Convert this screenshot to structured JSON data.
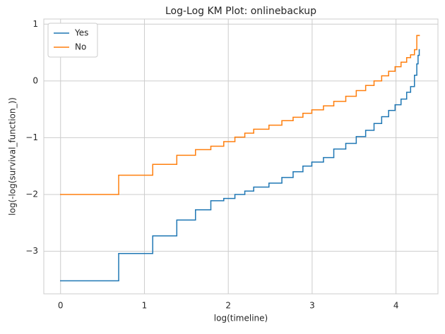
{
  "chart_data": {
    "type": "step",
    "title": "Log-Log KM Plot: onlinebackup",
    "x_label": "log(timeline)",
    "y_label": "log(-log(survival_function_))",
    "x": [
      0,
      0.693,
      1.099,
      1.386,
      1.609,
      1.792,
      1.946,
      2.079,
      2.197,
      2.303,
      2.485,
      2.639,
      2.773,
      2.89,
      2.996,
      3.135,
      3.258,
      3.401,
      3.526,
      3.638,
      3.738,
      3.829,
      3.912,
      3.989,
      4.06,
      4.127,
      4.174,
      4.22,
      4.248,
      4.263,
      4.277
    ],
    "series": [
      {
        "name": "Yes",
        "color": "#1f77b4",
        "values": [
          -3.52,
          -3.04,
          -2.73,
          -2.45,
          -2.27,
          -2.11,
          -2.07,
          -2.0,
          -1.94,
          -1.87,
          -1.8,
          -1.7,
          -1.6,
          -1.5,
          -1.43,
          -1.35,
          -1.2,
          -1.1,
          -0.98,
          -0.87,
          -0.75,
          -0.63,
          -0.52,
          -0.42,
          -0.32,
          -0.2,
          -0.1,
          0.1,
          0.3,
          0.45,
          0.55
        ]
      },
      {
        "name": "No",
        "color": "#ff7f0e",
        "values": [
          -2.0,
          -1.66,
          -1.47,
          -1.31,
          -1.21,
          -1.15,
          -1.07,
          -0.99,
          -0.92,
          -0.85,
          -0.78,
          -0.7,
          -0.64,
          -0.57,
          -0.51,
          -0.44,
          -0.36,
          -0.27,
          -0.17,
          -0.08,
          0.0,
          0.09,
          0.17,
          0.25,
          0.33,
          0.41,
          0.46,
          0.55,
          0.8,
          0.8,
          0.8
        ]
      }
    ],
    "xlim": [
      -0.2,
      4.5
    ],
    "ylim": [
      -3.75,
      1.09
    ],
    "xticks": [
      0,
      1,
      2,
      3,
      4
    ],
    "yticks": [
      {
        "value": -3,
        "label": "−3"
      },
      {
        "value": -2,
        "label": "−2"
      },
      {
        "value": -1,
        "label": "−1"
      },
      0,
      1
    ],
    "grid": true,
    "legend": "upper left"
  }
}
